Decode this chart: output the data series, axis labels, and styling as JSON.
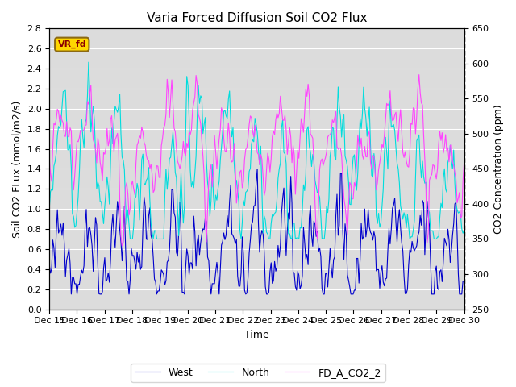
{
  "title": "Varia Forced Diffusion Soil CO2 Flux",
  "ylabel_left": "Soil CO2 FLux (mmol/m2/s)",
  "ylabel_right": "CO2 Concentration (ppm)",
  "xlabel": "Time",
  "ylim_left": [
    0.0,
    2.8
  ],
  "ylim_right": [
    250,
    650
  ],
  "xlim": [
    0,
    360
  ],
  "x_tick_positions": [
    0,
    24,
    48,
    72,
    96,
    120,
    144,
    168,
    192,
    216,
    240,
    264,
    288,
    312,
    336,
    360
  ],
  "x_tick_labels": [
    "Dec 15",
    "Dec 16",
    "Dec 17",
    "Dec 18",
    "Dec 19",
    "Dec 20",
    "Dec 21",
    "Dec 22",
    "Dec 23",
    "Dec 24",
    "Dec 25",
    "Dec 26",
    "Dec 27",
    "Dec 28",
    "Dec 29",
    "Dec 30"
  ],
  "annotation_text": "VR_fd",
  "annotation_box_facecolor": "#FFD700",
  "annotation_box_edgecolor": "#8B6914",
  "annotation_text_color": "#8B0000",
  "legend_entries": [
    "West",
    "North",
    "FD_A_CO2_2"
  ],
  "colors": {
    "West": "#0000CC",
    "North": "#00DDDD",
    "FD_A_CO2_2": "#FF44FF"
  },
  "linewidths": {
    "West": 0.8,
    "North": 0.8,
    "FD_A_CO2_2": 0.8
  },
  "background_color": "#DCDCDC",
  "figure_background": "#FFFFFF",
  "grid_color": "#FFFFFF",
  "yticks_left": [
    0.0,
    0.2,
    0.4,
    0.6,
    0.8,
    1.0,
    1.2,
    1.4,
    1.6,
    1.8,
    2.0,
    2.2,
    2.4,
    2.6,
    2.8
  ],
  "yticks_right": [
    250,
    300,
    350,
    400,
    450,
    500,
    550,
    600,
    650
  ]
}
